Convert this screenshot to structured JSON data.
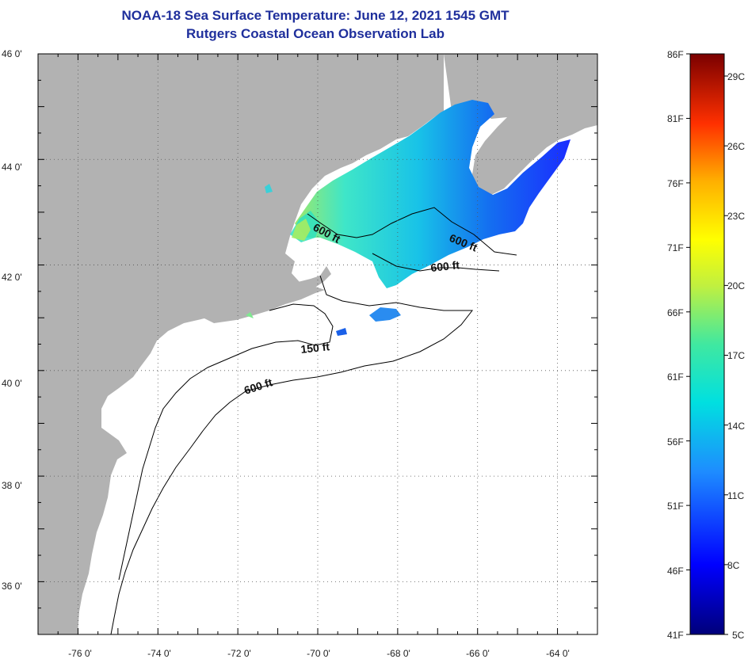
{
  "title": {
    "line1": "NOAA-18 Sea Surface Temperature:  June 12, 2021 1545 GMT",
    "line2": "Rutgers Coastal Ocean Observation Lab"
  },
  "map": {
    "lon_range": [
      -77,
      -63
    ],
    "lat_range": [
      35,
      46
    ],
    "lon_labels": [
      "-76 0'",
      "-74 0'",
      "-72 0'",
      "-70 0'",
      "-68 0'",
      "-66 0'",
      "-64 0'"
    ],
    "lat_labels": [
      "46 0'",
      "44 0'",
      "42 0'",
      "40 0'",
      "38 0'",
      "36 0'"
    ],
    "contour_labels": {
      "gulf_of_maine": "600 ft",
      "georges_east": "600 ft",
      "georges_south": "600 ft",
      "shelf_150": "150 ft",
      "shelf_600": "600 ft"
    },
    "colors": {
      "land": "#b2b2b2",
      "ocean_no_data": "#ffffff",
      "contour": "#000000"
    }
  },
  "colorbar": {
    "fahrenheit_labels": [
      "86F",
      "81F",
      "76F",
      "71F",
      "66F",
      "61F",
      "56F",
      "51F",
      "46F",
      "41F"
    ],
    "celsius_labels": [
      "29C",
      "26C",
      "23C",
      "20C",
      "17C",
      "14C",
      "11C",
      "8C",
      "5C"
    ],
    "range_c": [
      5,
      30
    ]
  }
}
